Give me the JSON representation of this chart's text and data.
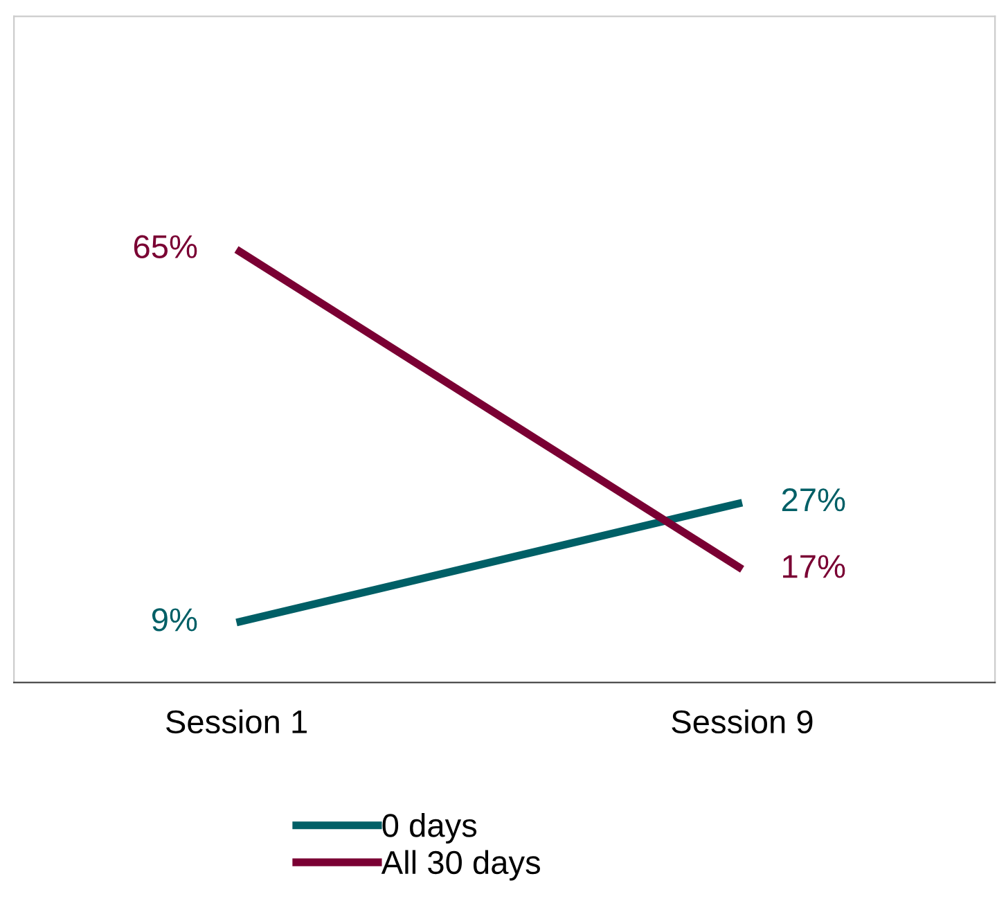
{
  "chart_data": {
    "type": "line",
    "categories": [
      "Session 1",
      "Session 9"
    ],
    "series": [
      {
        "name": "0 days",
        "color": "#005f66",
        "values": [
          9,
          27
        ],
        "value_labels": [
          "9%",
          "27%"
        ]
      },
      {
        "name": "All 30 days",
        "color": "#7a0033",
        "values": [
          65,
          17
        ],
        "value_labels": [
          "65%",
          "17%"
        ]
      }
    ],
    "ylim": [
      0,
      100
    ],
    "tick_labels": "x",
    "grid": false,
    "legend": "bottom",
    "marker": "none",
    "line_style": "solid"
  }
}
